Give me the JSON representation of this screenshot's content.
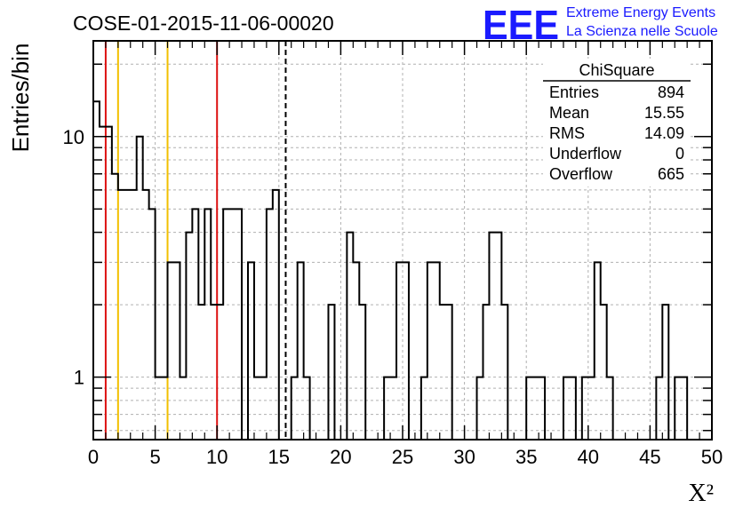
{
  "title": "COSE-01-2015-11-06-00020",
  "logo": {
    "mark": "EEE",
    "line1": "Extreme Energy Events",
    "line2": "La Scienza nelle Scuole",
    "color": "#1a1aff"
  },
  "stats_box": {
    "title": "ChiSquare",
    "rows": [
      {
        "label": "Entries",
        "value": "894"
      },
      {
        "label": "Mean",
        "value": "15.55"
      },
      {
        "label": "RMS",
        "value": "14.09"
      },
      {
        "label": "Underflow",
        "value": "0"
      },
      {
        "label": "Overflow",
        "value": "665"
      }
    ]
  },
  "chart_data": {
    "type": "histogram",
    "title": "COSE-01-2015-11-06-00020",
    "xlabel": "X²",
    "ylabel": "Entries/bin",
    "xlim": [
      0,
      50
    ],
    "ylim": [
      0.55,
      25
    ],
    "yscale": "log",
    "grid": true,
    "bin_width": 0.5,
    "x_ticks": [
      0,
      5,
      10,
      15,
      20,
      25,
      30,
      35,
      40,
      45,
      50
    ],
    "x_tick_labels": [
      "0",
      "5",
      "10",
      "15",
      "20",
      "25",
      "30",
      "35",
      "40",
      "45",
      "50"
    ],
    "y_ticks": [
      1,
      10
    ],
    "y_tick_labels": [
      "1",
      "10"
    ],
    "values": [
      14,
      11,
      11,
      7,
      6,
      6,
      6,
      10,
      6,
      5,
      1,
      1,
      3,
      3,
      1,
      4,
      5,
      2,
      5,
      2,
      2,
      5,
      5,
      5,
      0,
      3,
      1,
      1,
      5,
      6,
      0,
      0,
      1,
      3,
      1,
      0,
      0,
      0,
      2,
      0,
      0,
      4,
      3,
      2,
      0,
      0,
      0,
      1,
      1,
      3,
      3,
      0,
      0,
      1,
      3,
      3,
      2,
      2,
      0,
      0,
      0,
      0,
      1,
      2,
      4,
      4,
      2,
      0,
      0,
      0,
      1,
      1,
      1,
      0,
      0,
      0,
      1,
      1,
      0,
      1,
      1,
      3,
      2,
      1,
      0,
      0,
      0,
      0,
      0,
      0,
      0,
      1,
      2,
      0,
      1,
      1,
      0,
      0,
      0,
      0
    ],
    "vertical_lines": [
      {
        "x": 1,
        "color": "#dd1111"
      },
      {
        "x": 2,
        "color": "#f2c000"
      },
      {
        "x": 6,
        "color": "#f2c000"
      },
      {
        "x": 10,
        "color": "#dd1111"
      },
      {
        "x": 15.55,
        "color": "#000000",
        "style": "dashed"
      }
    ]
  }
}
